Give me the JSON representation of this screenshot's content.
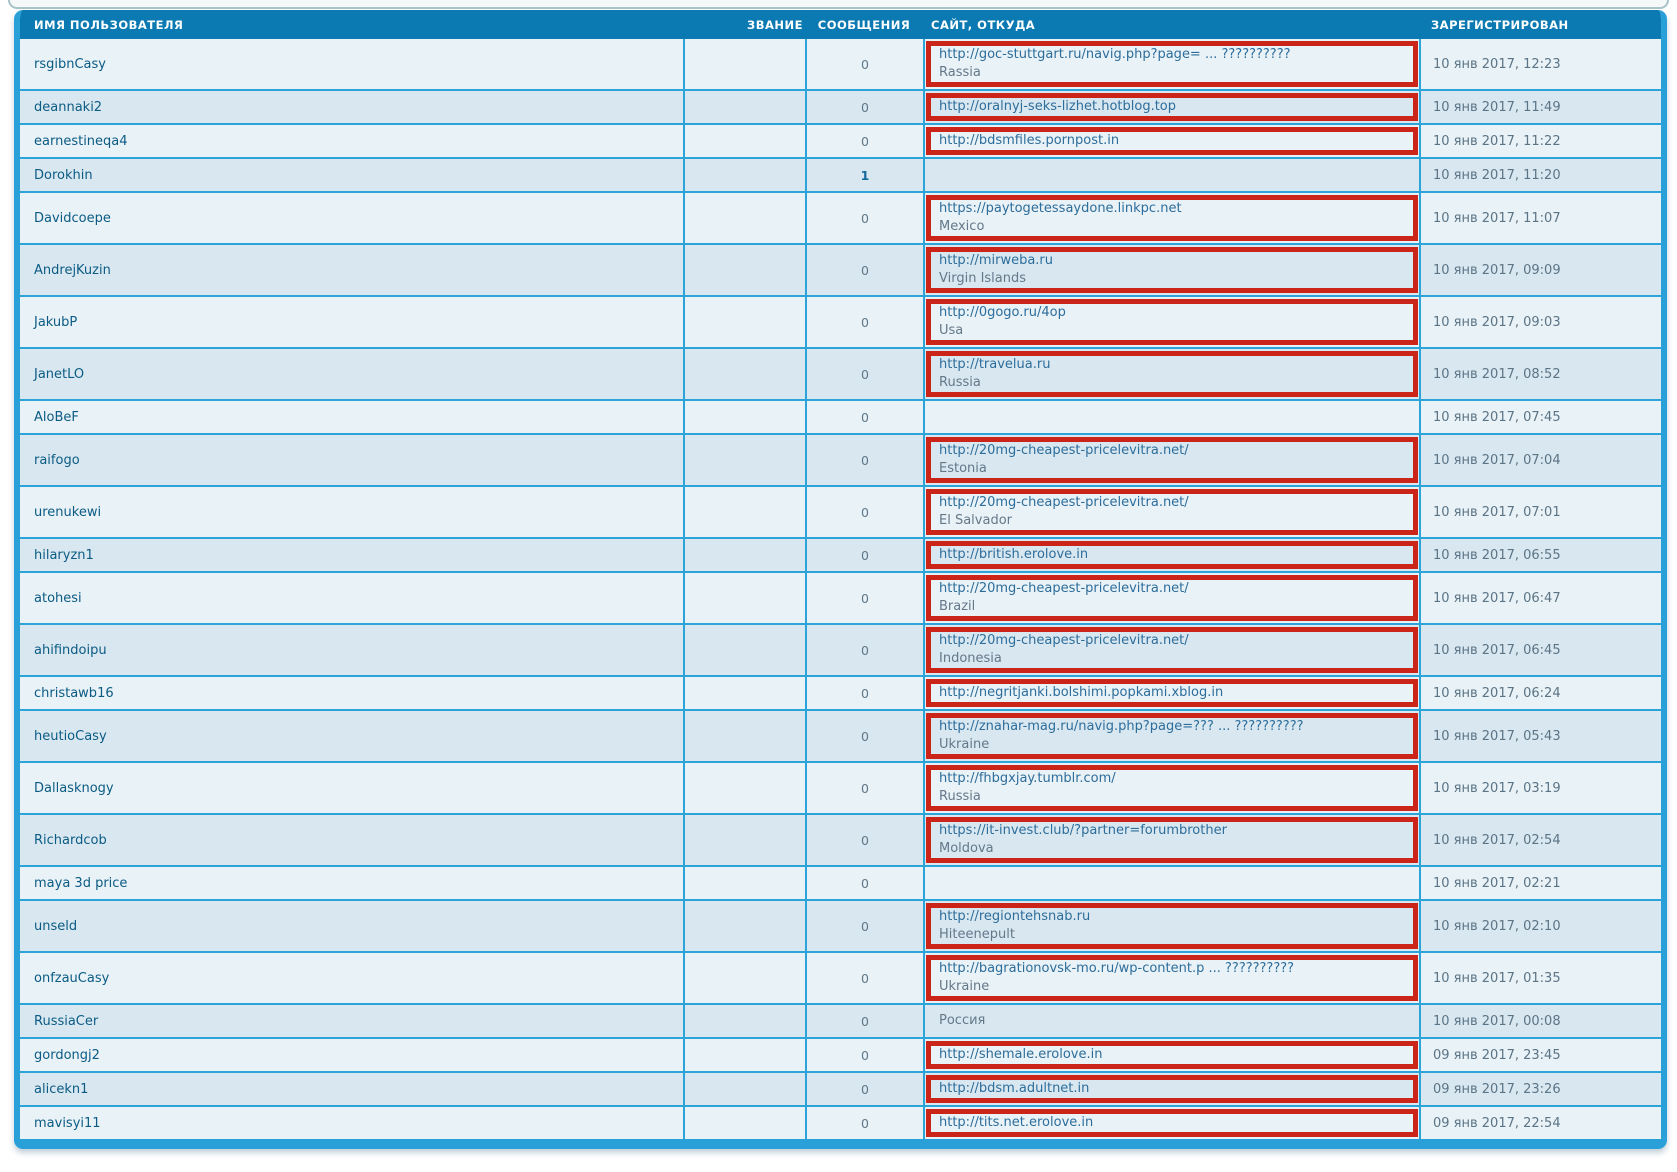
{
  "above_table_fragment": {
    "note": ""
  },
  "table": {
    "headers": {
      "username": "ИМЯ ПОЛЬЗОВАТЕЛЯ",
      "rank": "ЗВАНИЕ",
      "posts": "СООБЩЕНИЯ",
      "site": "САЙТ, ОТКУДА",
      "registered": "ЗАРЕГИСТРИРОВАН"
    },
    "rows": [
      {
        "username": "rsgibnCasy",
        "rank": "",
        "posts": "0",
        "url": "http://goc-stuttgart.ru/navig.php?page= ... ??????????",
        "location": "Rassia",
        "registered": "10 янв 2017, 12:23",
        "annotated": true
      },
      {
        "username": "deannaki2",
        "rank": "",
        "posts": "0",
        "url": "http://oralnyj-seks-lizhet.hotblog.top",
        "location": "",
        "registered": "10 янв 2017, 11:49",
        "annotated": true
      },
      {
        "username": "earnestineqa4",
        "rank": "",
        "posts": "0",
        "url": "http://bdsmfiles.pornpost.in",
        "location": "",
        "registered": "10 янв 2017, 11:22",
        "annotated": true
      },
      {
        "username": "Dorokhin",
        "rank": "",
        "posts": "1",
        "url": "",
        "location": "",
        "registered": "10 янв 2017, 11:20",
        "annotated": false
      },
      {
        "username": "Davidcoepe",
        "rank": "",
        "posts": "0",
        "url": "https://paytogetessaydone.linkpc.net",
        "location": "Mexico",
        "registered": "10 янв 2017, 11:07",
        "annotated": true
      },
      {
        "username": "AndrejKuzin",
        "rank": "",
        "posts": "0",
        "url": "http://mirweba.ru",
        "location": "Virgin Islands",
        "registered": "10 янв 2017, 09:09",
        "annotated": true
      },
      {
        "username": "JakubP",
        "rank": "",
        "posts": "0",
        "url": "http://0gogo.ru/4op",
        "location": "Usa",
        "registered": "10 янв 2017, 09:03",
        "annotated": true
      },
      {
        "username": "JanetLO",
        "rank": "",
        "posts": "0",
        "url": "http://travelua.ru",
        "location": "Russia",
        "registered": "10 янв 2017, 08:52",
        "annotated": true
      },
      {
        "username": "AloBeF",
        "rank": "",
        "posts": "0",
        "url": "",
        "location": "",
        "registered": "10 янв 2017, 07:45",
        "annotated": false
      },
      {
        "username": "raifogo",
        "rank": "",
        "posts": "0",
        "url": "http://20mg-cheapest-pricelevitra.net/",
        "location": "Estonia",
        "registered": "10 янв 2017, 07:04",
        "annotated": true
      },
      {
        "username": "urenukewi",
        "rank": "",
        "posts": "0",
        "url": "http://20mg-cheapest-pricelevitra.net/",
        "location": "El Salvador",
        "registered": "10 янв 2017, 07:01",
        "annotated": true
      },
      {
        "username": "hilaryzn1",
        "rank": "",
        "posts": "0",
        "url": "http://british.erolove.in",
        "location": "",
        "registered": "10 янв 2017, 06:55",
        "annotated": true
      },
      {
        "username": "atohesi",
        "rank": "",
        "posts": "0",
        "url": "http://20mg-cheapest-pricelevitra.net/",
        "location": "Brazil",
        "registered": "10 янв 2017, 06:47",
        "annotated": true
      },
      {
        "username": "ahifindoipu",
        "rank": "",
        "posts": "0",
        "url": "http://20mg-cheapest-pricelevitra.net/",
        "location": "Indonesia",
        "registered": "10 янв 2017, 06:45",
        "annotated": true
      },
      {
        "username": "christawb16",
        "rank": "",
        "posts": "0",
        "url": "http://negritjanki.bolshimi.popkami.xblog.in",
        "location": "",
        "registered": "10 янв 2017, 06:24",
        "annotated": true
      },
      {
        "username": "heutioCasy",
        "rank": "",
        "posts": "0",
        "url": "http://znahar-mag.ru/navig.php?page=??? ... ??????????",
        "location": "Ukraine",
        "registered": "10 янв 2017, 05:43",
        "annotated": true
      },
      {
        "username": "Dallasknogy",
        "rank": "",
        "posts": "0",
        "url": "http://fhbgxjay.tumblr.com/",
        "location": "Russia",
        "registered": "10 янв 2017, 03:19",
        "annotated": true
      },
      {
        "username": "Richardcob",
        "rank": "",
        "posts": "0",
        "url": "https://it-invest.club/?partner=forumbrother",
        "location": "Moldova",
        "registered": "10 янв 2017, 02:54",
        "annotated": true
      },
      {
        "username": "maya 3d price",
        "rank": "",
        "posts": "0",
        "url": "",
        "location": "",
        "registered": "10 янв 2017, 02:21",
        "annotated": false
      },
      {
        "username": "unseld",
        "rank": "",
        "posts": "0",
        "url": "http://regiontehsnab.ru",
        "location": "Hiteenepult",
        "registered": "10 янв 2017, 02:10",
        "annotated": true
      },
      {
        "username": "onfzauCasy",
        "rank": "",
        "posts": "0",
        "url": "http://bagrationovsk-mo.ru/wp-content.p ... ??????????",
        "location": "Ukraine",
        "registered": "10 янв 2017, 01:35",
        "annotated": true
      },
      {
        "username": "RussiaCer",
        "rank": "",
        "posts": "0",
        "url": "",
        "location": "Россия",
        "registered": "10 янв 2017, 00:08",
        "annotated": false
      },
      {
        "username": "gordongj2",
        "rank": "",
        "posts": "0",
        "url": "http://shemale.erolove.in",
        "location": "",
        "registered": "09 янв 2017, 23:45",
        "annotated": true
      },
      {
        "username": "alicekn1",
        "rank": "",
        "posts": "0",
        "url": "http://bdsm.adultnet.in",
        "location": "",
        "registered": "09 янв 2017, 23:26",
        "annotated": true
      },
      {
        "username": "mavisyi11",
        "rank": "",
        "posts": "0",
        "url": "http://tits.net.erolove.in",
        "location": "",
        "registered": "09 янв 2017, 22:54",
        "annotated": true
      }
    ]
  },
  "colors": {
    "header_bg": "#0b7ab3",
    "outer_border": "#2aa0d8",
    "grid_line": "#2ca4d9",
    "row_light": "#e9f2f6",
    "row_alt": "#d9e8f0",
    "annotation_red": "#cb2418",
    "username_link": "#0b5b84",
    "site_link": "#2d6d9b",
    "location_text": "#64788a",
    "date_text": "#5b7486"
  }
}
